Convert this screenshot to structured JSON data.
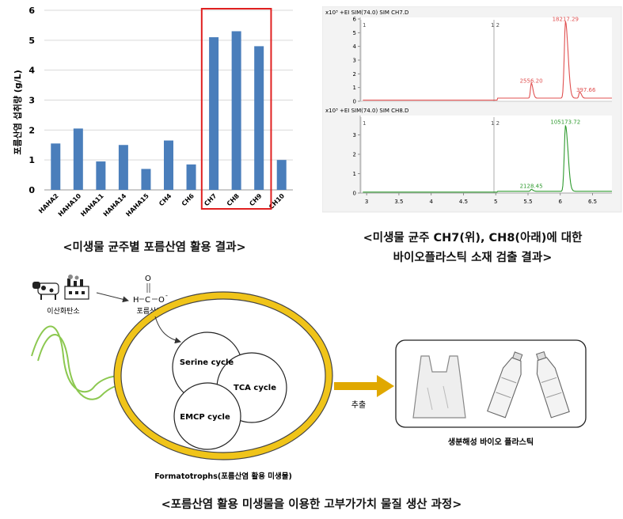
{
  "bar_chart": {
    "ylabel": "포름산염 섭취량 (g/L)",
    "highlight_color": "#e02020",
    "bar_color": "#4a7ebb",
    "highlighted_categories": [
      "CH7",
      "CH8",
      "CH9"
    ]
  },
  "chromatogram": {
    "top_header": "+EI SIM(74.0) SIM CH7.D",
    "bottom_header": "+EI SIM(74.0) SIM CH8.D",
    "scale_label": "x10³",
    "top_marker_left": "1",
    "top_marker_right": "1 2",
    "bottom_marker_left": "1",
    "bottom_marker_right": "1 2",
    "top_color": "#e05050",
    "bottom_color": "#2e9a2e"
  },
  "chart_data": [
    {
      "type": "bar",
      "categories": [
        "HAHA2",
        "HAHA10",
        "HAHA11",
        "HAHA14",
        "HAHA15",
        "CH4",
        "CH6",
        "CH7",
        "CH8",
        "CH9",
        "CH10"
      ],
      "values": [
        1.55,
        2.05,
        0.95,
        1.5,
        0.7,
        1.65,
        0.85,
        5.1,
        5.3,
        4.8,
        1.0
      ],
      "ylim": [
        0,
        6
      ],
      "yticks": [
        "0",
        "1",
        "2",
        "3",
        "4",
        "5",
        "6"
      ],
      "ylabel": "포름산염 섭취량 (g/L)",
      "grid": true
    },
    {
      "type": "line",
      "name": "CH7",
      "x_range": [
        2.9,
        6.8
      ],
      "ylim": [
        0,
        6
      ],
      "yticks": [
        "0",
        "1",
        "2",
        "3",
        "4",
        "5",
        "6"
      ],
      "peaks": [
        {
          "x": 5.55,
          "height": 1.1,
          "label": "2556.20"
        },
        {
          "x": 6.08,
          "height": 5.6,
          "label": "18217.29"
        },
        {
          "x": 6.3,
          "height": 0.45,
          "label": "397.66"
        }
      ]
    },
    {
      "type": "line",
      "name": "CH8",
      "x_range": [
        2.9,
        6.8
      ],
      "xticks": [
        "3",
        "3.5",
        "4",
        "4.5",
        "5",
        "5.5",
        "6",
        "6.5"
      ],
      "ylim": [
        0,
        4
      ],
      "yticks": [
        "0",
        "1",
        "2",
        "3"
      ],
      "peaks": [
        {
          "x": 5.55,
          "height": 0.1,
          "label": "2128.45"
        },
        {
          "x": 6.08,
          "height": 3.4,
          "label": "105173.72"
        }
      ]
    }
  ],
  "captions": {
    "bar_caption": "<미생물 균주별 포름산염 활용 결과>",
    "chrom_caption_line1": "<미생물 균주 CH7(위), CH8(아래)에 대한",
    "chrom_caption_line2": "바이오플라스틱 소재 검출 결과>",
    "diagram_caption": "<포름산염 활용 미생물을 이용한 고부가가치 물질 생산 과정>"
  },
  "diagram": {
    "co2_label": "이산화탄소",
    "formate_label": "포름산염",
    "formula_h": "H",
    "formula_c": "C",
    "formula_o_top": "O",
    "formula_o_right": "O",
    "formula_charge": "-",
    "cycle_serine": "Serine cycle",
    "cycle_tca": "TCA cycle",
    "cycle_emcp": "EMCP cycle",
    "cell_label": "Formatotrophs(포름산염 활용 미생물)",
    "extract_label": "추출",
    "product_label": "생분해성 바이오 플라스틱",
    "cell_color": "#f0c419",
    "arrow_color": "#e0a800",
    "flagella_color": "#8cc850"
  }
}
